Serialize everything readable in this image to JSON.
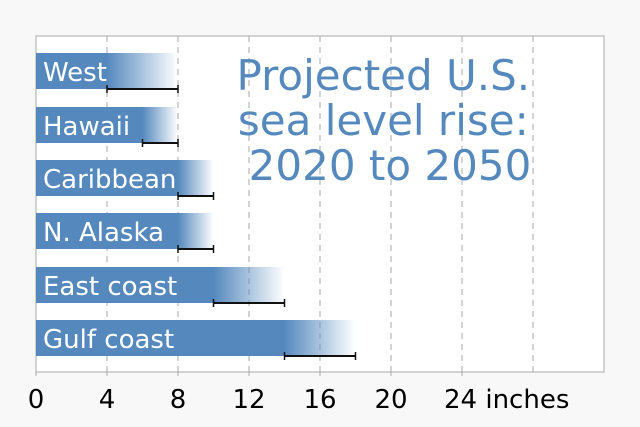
{
  "chart_data": {
    "type": "bar",
    "orientation": "horizontal",
    "title": "Projected U.S. sea level rise: 2020 to 2050",
    "title_lines": [
      "Projected U.S.",
      "sea level rise:",
      "2020 to 2050"
    ],
    "xlabel": "inches",
    "xlim": [
      0,
      32
    ],
    "xticks": [
      0,
      4,
      8,
      12,
      16,
      20,
      24
    ],
    "xtick_labels": [
      "0",
      "4",
      "8",
      "12",
      "16",
      "20",
      "24 inches"
    ],
    "gridlines_at": [
      4,
      8,
      12,
      16,
      20,
      24,
      28
    ],
    "grid": true,
    "categories": [
      "West",
      "Hawaii",
      "Caribbean",
      "N. Alaska",
      "East coast",
      "Gulf coast"
    ],
    "low": [
      4,
      6,
      8,
      8,
      10,
      14
    ],
    "high": [
      8,
      8,
      10,
      10,
      14,
      18
    ],
    "colors": {
      "bar": "#5589bd",
      "title": "#5589bd",
      "background": "#f8f8f8",
      "plot": "#ffffff"
    }
  }
}
